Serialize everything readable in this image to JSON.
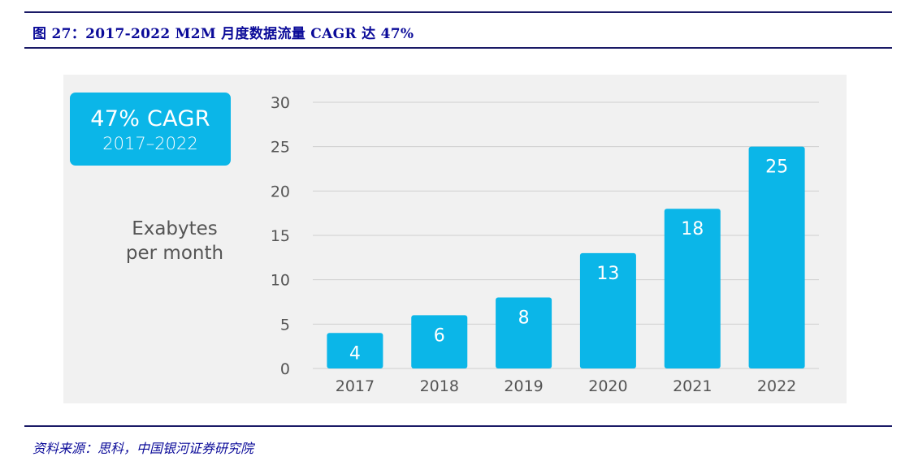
{
  "header": {
    "title": "图 27：2017-2022 M2M 月度数据流量 CAGR 达 47%"
  },
  "badge": {
    "line1": "47% CAGR",
    "line2": "2017–2022"
  },
  "footer": {
    "source": "资料来源：思科，中国银河证券研究院"
  },
  "colors": {
    "bar": "#0bb6e8",
    "panel": "#f1f1f1",
    "grid": "#cfcfcf",
    "title": "#0b0b99"
  },
  "chart_data": {
    "type": "bar",
    "categories": [
      "2017",
      "2018",
      "2019",
      "2020",
      "2021",
      "2022"
    ],
    "values": [
      4,
      6,
      8,
      13,
      18,
      25
    ],
    "ylabel_lines": [
      "Exabytes",
      "per month"
    ],
    "ylim": [
      0,
      30
    ],
    "yticks": [
      0,
      5,
      10,
      15,
      20,
      25,
      30
    ],
    "grid": true,
    "legend": "none"
  }
}
